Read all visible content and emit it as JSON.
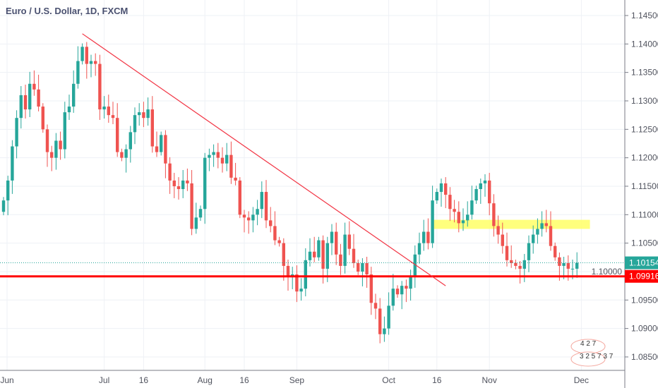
{
  "title": "Euro / U.S. Dollar, 1D, FXCM",
  "chart_data": {
    "type": "candlestick",
    "title": "Euro / U.S. Dollar, 1D, FXCM",
    "ylim": [
      1.0825,
      1.1475
    ],
    "yticks": [
      "1.14500",
      "1.14000",
      "1.13500",
      "1.13000",
      "1.12500",
      "1.12000",
      "1.11500",
      "1.11000",
      "1.10500",
      "1.10000",
      "1.09500",
      "1.09000",
      "1.08500"
    ],
    "xticks": [
      {
        "label": "Jun",
        "idx": 0
      },
      {
        "label": "Jul",
        "idx": 23
      },
      {
        "label": "16",
        "idx": 32
      },
      {
        "label": "Aug",
        "idx": 46
      },
      {
        "label": "16",
        "idx": 55
      },
      {
        "label": "Sep",
        "idx": 67
      },
      {
        "label": "Oct",
        "idx": 88
      },
      {
        "label": "16",
        "idx": 99
      },
      {
        "label": "Nov",
        "idx": 111
      },
      {
        "label": "Dec",
        "idx": 132
      }
    ],
    "closes": [
      1.1125,
      1.116,
      1.122,
      1.127,
      1.131,
      1.1285,
      1.133,
      1.132,
      1.129,
      1.125,
      1.121,
      1.12,
      1.123,
      1.1215,
      1.128,
      1.129,
      1.133,
      1.137,
      1.1395,
      1.1365,
      1.137,
      1.1365,
      1.1285,
      1.129,
      1.1275,
      1.127,
      1.121,
      1.12,
      1.1215,
      1.1245,
      1.1275,
      1.128,
      1.127,
      1.1285,
      1.122,
      1.121,
      1.124,
      1.119,
      1.116,
      1.115,
      1.1145,
      1.116,
      1.1155,
      1.1075,
      1.1095,
      1.111,
      1.12,
      1.1205,
      1.121,
      1.12,
      1.119,
      1.1205,
      1.1165,
      1.116,
      1.11,
      1.1095,
      1.109,
      1.11,
      1.111,
      1.114,
      1.109,
      1.108,
      1.1055,
      1.105,
      1.101,
      1.099,
      1.0995,
      1.0965,
      1.097,
      1.102,
      1.1035,
      1.1025,
      1.1055,
      1.1005,
      1.105,
      1.107,
      1.103,
      1.101,
      1.1065,
      1.104,
      1.1015,
      1.1,
      1.1015,
      1.0995,
      1.0945,
      1.0935,
      1.089,
      1.09,
      1.094,
      1.097,
      1.096,
      1.0975,
      1.097,
      1.099,
      1.103,
      1.105,
      1.107,
      1.105,
      1.1125,
      1.114,
      1.1155,
      1.1135,
      1.111,
      1.1105,
      1.1085,
      1.109,
      1.11,
      1.1125,
      1.1145,
      1.1155,
      1.116,
      1.112,
      1.108,
      1.1065,
      1.1045,
      1.102,
      1.1015,
      1.101,
      1.1005,
      1.102,
      1.105,
      1.1065,
      1.1075,
      1.1085,
      1.108,
      1.1045,
      1.1025,
      1.101,
      1.1015,
      1.1005,
      1.1005,
      1.10154
    ],
    "last_price": "1.10154",
    "hline": {
      "price": 1.09916,
      "label": "1.09916",
      "color": "#ff0000"
    },
    "trendline": {
      "from": [
        18,
        1.1418
      ],
      "to": [
        101,
        1.0975
      ],
      "color": "#f23645"
    },
    "zone": {
      "from_idx": 98,
      "to_idx": 133,
      "low": 1.1075,
      "high": 1.1091,
      "color": "#ffff66"
    },
    "events": {
      "row1": "4 2 7",
      "row2": "3 2 5 7 3 7"
    },
    "colors": {
      "up": "#26a69a",
      "down": "#ef5350"
    }
  }
}
